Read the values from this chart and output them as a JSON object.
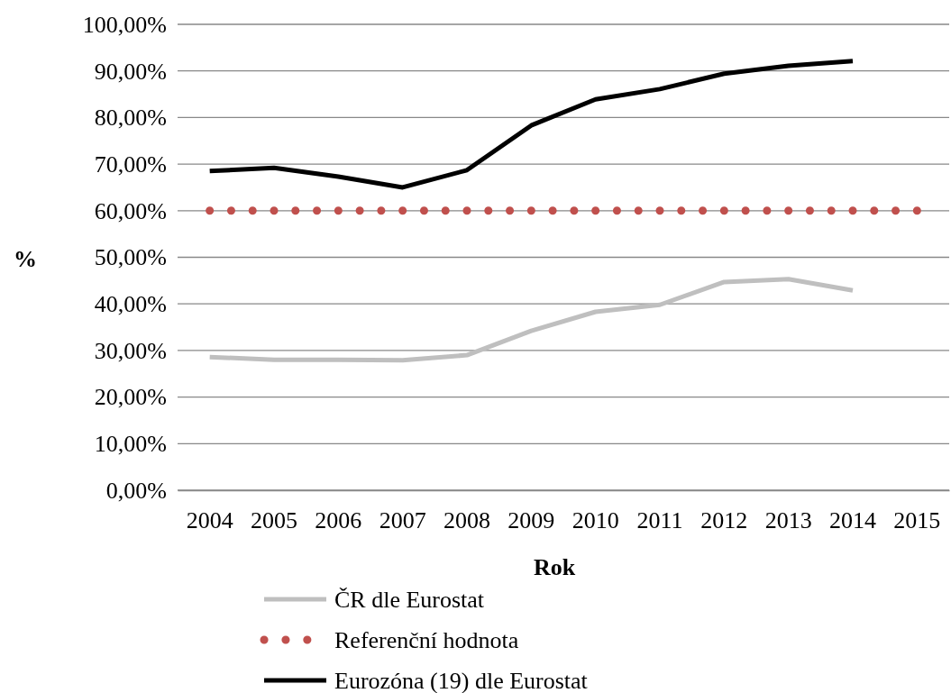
{
  "chart_data": {
    "type": "line",
    "xlabel": "Rok",
    "ylabel": "%",
    "categories": [
      "2004",
      "2005",
      "2006",
      "2007",
      "2008",
      "2009",
      "2010",
      "2011",
      "2012",
      "2013",
      "2014",
      "2015"
    ],
    "ylim": [
      0,
      100
    ],
    "yticks": [
      {
        "value": 0,
        "label": "0,00%"
      },
      {
        "value": 10,
        "label": "10,00%"
      },
      {
        "value": 20,
        "label": "20,00%"
      },
      {
        "value": 30,
        "label": "30,00%"
      },
      {
        "value": 40,
        "label": "40,00%"
      },
      {
        "value": 50,
        "label": "50,00%"
      },
      {
        "value": 60,
        "label": "60,00%"
      },
      {
        "value": 70,
        "label": "70,00%"
      },
      {
        "value": 80,
        "label": "80,00%"
      },
      {
        "value": 90,
        "label": "90,00%"
      },
      {
        "value": 100,
        "label": "100,00%"
      }
    ],
    "grid": "y",
    "legend": "bottom",
    "marker": "none",
    "series": [
      {
        "name": "ČR dle Eurostat",
        "color": "#bfbfbf",
        "line_style": "solid",
        "values": [
          28.6,
          28.0,
          28.0,
          27.9,
          29.0,
          34.2,
          38.3,
          39.8,
          44.7,
          45.3,
          42.9,
          null
        ]
      },
      {
        "name": "Referenční hodnota",
        "color": "#c0504d",
        "line_style": "dotted",
        "values": [
          60,
          60,
          60,
          60,
          60,
          60,
          60,
          60,
          60,
          60,
          60,
          60
        ]
      },
      {
        "name": "Eurozóna (19) dle Eurostat",
        "color": "#000000",
        "line_style": "solid",
        "values": [
          68.5,
          69.2,
          67.3,
          65.0,
          68.7,
          78.3,
          83.9,
          86.1,
          89.4,
          91.1,
          92.1,
          null
        ]
      }
    ]
  }
}
